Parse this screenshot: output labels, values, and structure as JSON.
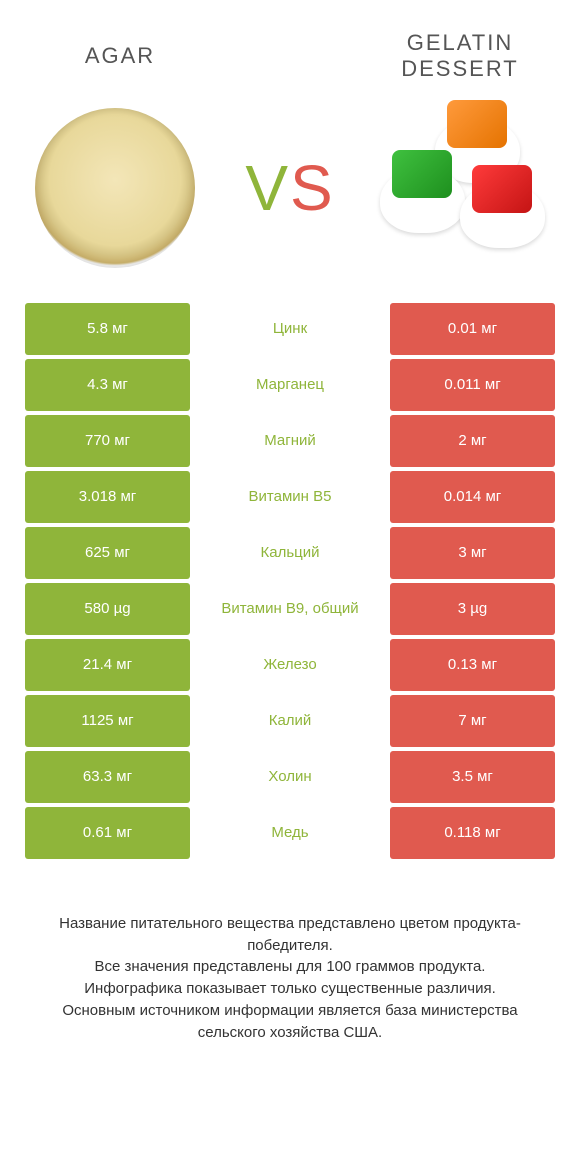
{
  "colors": {
    "left_bar": "#8fb53a",
    "right_bar": "#e05a4f",
    "vs_v": "#8fb53a",
    "vs_s": "#e05a4f",
    "nutrient_text": "#8fb53a"
  },
  "header": {
    "left_title": "AGAR",
    "right_title": "GELATIN DESSERT",
    "vs_v": "V",
    "vs_s": "S"
  },
  "rows": [
    {
      "left": "5.8 мг",
      "mid": "Цинк",
      "right": "0.01 мг"
    },
    {
      "left": "4.3 мг",
      "mid": "Марганец",
      "right": "0.011 мг"
    },
    {
      "left": "770 мг",
      "mid": "Магний",
      "right": "2 мг"
    },
    {
      "left": "3.018 мг",
      "mid": "Витамин B5",
      "right": "0.014 мг"
    },
    {
      "left": "625 мг",
      "mid": "Кальций",
      "right": "3 мг"
    },
    {
      "left": "580 µg",
      "mid": "Витамин B9, общий",
      "right": "3 µg"
    },
    {
      "left": "21.4 мг",
      "mid": "Железо",
      "right": "0.13 мг"
    },
    {
      "left": "1125 мг",
      "mid": "Калий",
      "right": "7 мг"
    },
    {
      "left": "63.3 мг",
      "mid": "Холин",
      "right": "3.5 мг"
    },
    {
      "left": "0.61 мг",
      "mid": "Медь",
      "right": "0.118 мг"
    }
  ],
  "footer": {
    "line1": "Название питательного вещества представлено цветом продукта-победителя.",
    "line2": "Все значения представлены для 100 граммов продукта.",
    "line3": "Инфографика показывает только существенные различия.",
    "line4": "Основным источником информации является база министерства сельского хозяйства США."
  }
}
